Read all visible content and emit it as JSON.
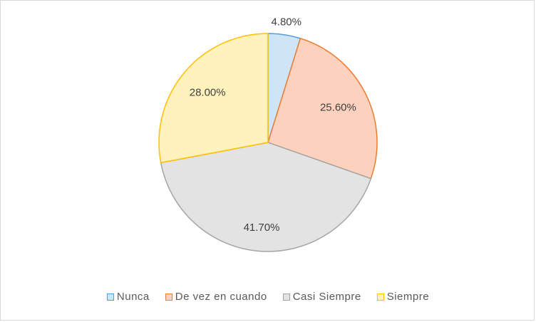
{
  "chart_data": {
    "type": "pie",
    "title": "",
    "categories": [
      "Nunca",
      "De vez en cuando",
      "Casi Siempre",
      "Siempre"
    ],
    "values": [
      4.8,
      25.6,
      41.7,
      28.0
    ],
    "data_labels": [
      "4.80%",
      "25.60%",
      "41.70%",
      "28.00%"
    ],
    "legend_position": "bottom",
    "colors": {
      "fills": [
        "#cfe5f6",
        "#fcd2bf",
        "#e3e3e3",
        "#fff2bc"
      ],
      "strokes": [
        "#5b9bd5",
        "#ed7d31",
        "#a5a5a5",
        "#ffc000"
      ]
    }
  }
}
